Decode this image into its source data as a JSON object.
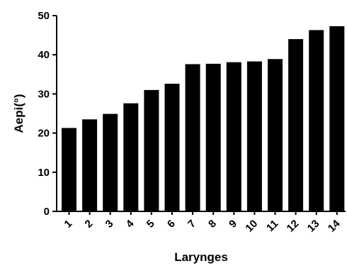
{
  "chart_data": {
    "type": "bar",
    "title": "",
    "xlabel": "Larynges",
    "ylabel": "Aepi(°)",
    "categories": [
      "1",
      "2",
      "3",
      "4",
      "5",
      "6",
      "7",
      "8",
      "9",
      "10",
      "11",
      "12",
      "13",
      "14"
    ],
    "values": [
      21.3,
      23.5,
      24.9,
      27.6,
      31.0,
      32.6,
      37.6,
      37.7,
      38.1,
      38.3,
      38.9,
      44.0,
      46.3,
      47.3
    ],
    "ylim": [
      0,
      50
    ],
    "yticks": [
      "0",
      "10",
      "20",
      "30",
      "40",
      "50"
    ],
    "grid": false,
    "legend": "none",
    "bar_color": "#000000"
  }
}
